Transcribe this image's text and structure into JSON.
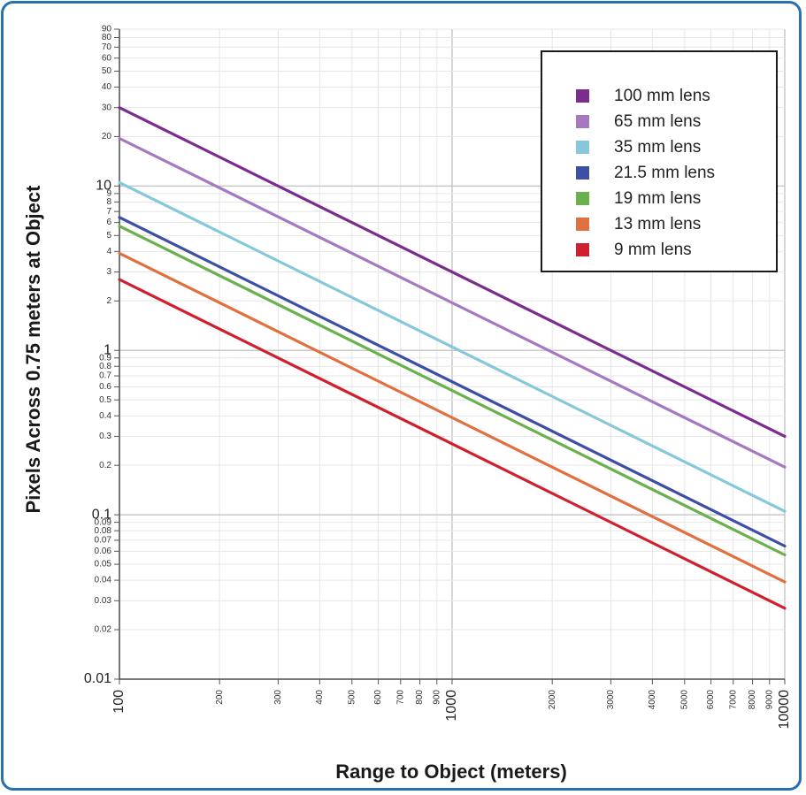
{
  "chart_data": {
    "type": "line",
    "xlabel": "Range to Object (meters)",
    "ylabel": "Pixels Across 0.75 meters at Object",
    "xscale": "log",
    "yscale": "log",
    "xlim": [
      100,
      10000
    ],
    "ylim": [
      0.01,
      90
    ],
    "grid": true,
    "legend_position": "top-right",
    "x_ticks": {
      "major": [
        {
          "value": 100,
          "label": "100"
        },
        {
          "value": 1000,
          "label": "1000"
        },
        {
          "value": 10000,
          "label": "10000"
        }
      ],
      "minor": [
        {
          "value": 200,
          "label": "200"
        },
        {
          "value": 300,
          "label": "300"
        },
        {
          "value": 400,
          "label": "400"
        },
        {
          "value": 500,
          "label": "500"
        },
        {
          "value": 600,
          "label": "600"
        },
        {
          "value": 700,
          "label": "700"
        },
        {
          "value": 800,
          "label": "800"
        },
        {
          "value": 900,
          "label": "900"
        },
        {
          "value": 2000,
          "label": "2000"
        },
        {
          "value": 3000,
          "label": "3000"
        },
        {
          "value": 4000,
          "label": "4000"
        },
        {
          "value": 5000,
          "label": "5000"
        },
        {
          "value": 6000,
          "label": "6000"
        },
        {
          "value": 7000,
          "label": "7000"
        },
        {
          "value": 8000,
          "label": "8000"
        },
        {
          "value": 9000,
          "label": "9000"
        }
      ]
    },
    "y_ticks": {
      "major": [
        {
          "value": 0.01,
          "label": "0.01"
        },
        {
          "value": 0.1,
          "label": "0.1"
        },
        {
          "value": 1,
          "label": "1"
        },
        {
          "value": 10,
          "label": "10"
        }
      ],
      "minor": [
        {
          "value": 0.02,
          "label": "0.02"
        },
        {
          "value": 0.03,
          "label": "0.03"
        },
        {
          "value": 0.04,
          "label": "0.04"
        },
        {
          "value": 0.05,
          "label": "0.05"
        },
        {
          "value": 0.06,
          "label": "0.06"
        },
        {
          "value": 0.07,
          "label": "0.07"
        },
        {
          "value": 0.08,
          "label": "0.08"
        },
        {
          "value": 0.09,
          "label": "0.09"
        },
        {
          "value": 0.2,
          "label": "0.2"
        },
        {
          "value": 0.3,
          "label": "0.3"
        },
        {
          "value": 0.4,
          "label": "0.4"
        },
        {
          "value": 0.5,
          "label": "0.5"
        },
        {
          "value": 0.6,
          "label": "0.6"
        },
        {
          "value": 0.7,
          "label": "0.7"
        },
        {
          "value": 0.8,
          "label": "0.8"
        },
        {
          "value": 0.9,
          "label": "0.9"
        },
        {
          "value": 2,
          "label": "2"
        },
        {
          "value": 3,
          "label": "3"
        },
        {
          "value": 4,
          "label": "4"
        },
        {
          "value": 5,
          "label": "5"
        },
        {
          "value": 6,
          "label": "6"
        },
        {
          "value": 7,
          "label": "7"
        },
        {
          "value": 8,
          "label": "8"
        },
        {
          "value": 9,
          "label": "9"
        },
        {
          "value": 20,
          "label": "20"
        },
        {
          "value": 30,
          "label": "30"
        },
        {
          "value": 40,
          "label": "40"
        },
        {
          "value": 50,
          "label": "50"
        },
        {
          "value": 60,
          "label": "60"
        },
        {
          "value": 70,
          "label": "70"
        },
        {
          "value": 80,
          "label": "80"
        },
        {
          "value": 90,
          "label": "90"
        }
      ]
    },
    "series": [
      {
        "name": "100 mm lens",
        "color": "#7b2d8e",
        "x": [
          100,
          10000
        ],
        "y": [
          30,
          0.3
        ]
      },
      {
        "name": "65 mm lens",
        "color": "#a678c0",
        "x": [
          100,
          10000
        ],
        "y": [
          19.5,
          0.195
        ]
      },
      {
        "name": "35 mm lens",
        "color": "#87c7dc",
        "x": [
          100,
          10000
        ],
        "y": [
          10.5,
          0.105
        ]
      },
      {
        "name": "21.5 mm lens",
        "color": "#3d4ea5",
        "x": [
          100,
          10000
        ],
        "y": [
          6.45,
          0.0645
        ]
      },
      {
        "name": "19 mm lens",
        "color": "#6ab04c",
        "x": [
          100,
          10000
        ],
        "y": [
          5.7,
          0.057
        ]
      },
      {
        "name": "13 mm lens",
        "color": "#e07040",
        "x": [
          100,
          10000
        ],
        "y": [
          3.9,
          0.039
        ]
      },
      {
        "name": "9 mm lens",
        "color": "#d0202e",
        "x": [
          100,
          10000
        ],
        "y": [
          2.7,
          0.027
        ]
      }
    ]
  }
}
